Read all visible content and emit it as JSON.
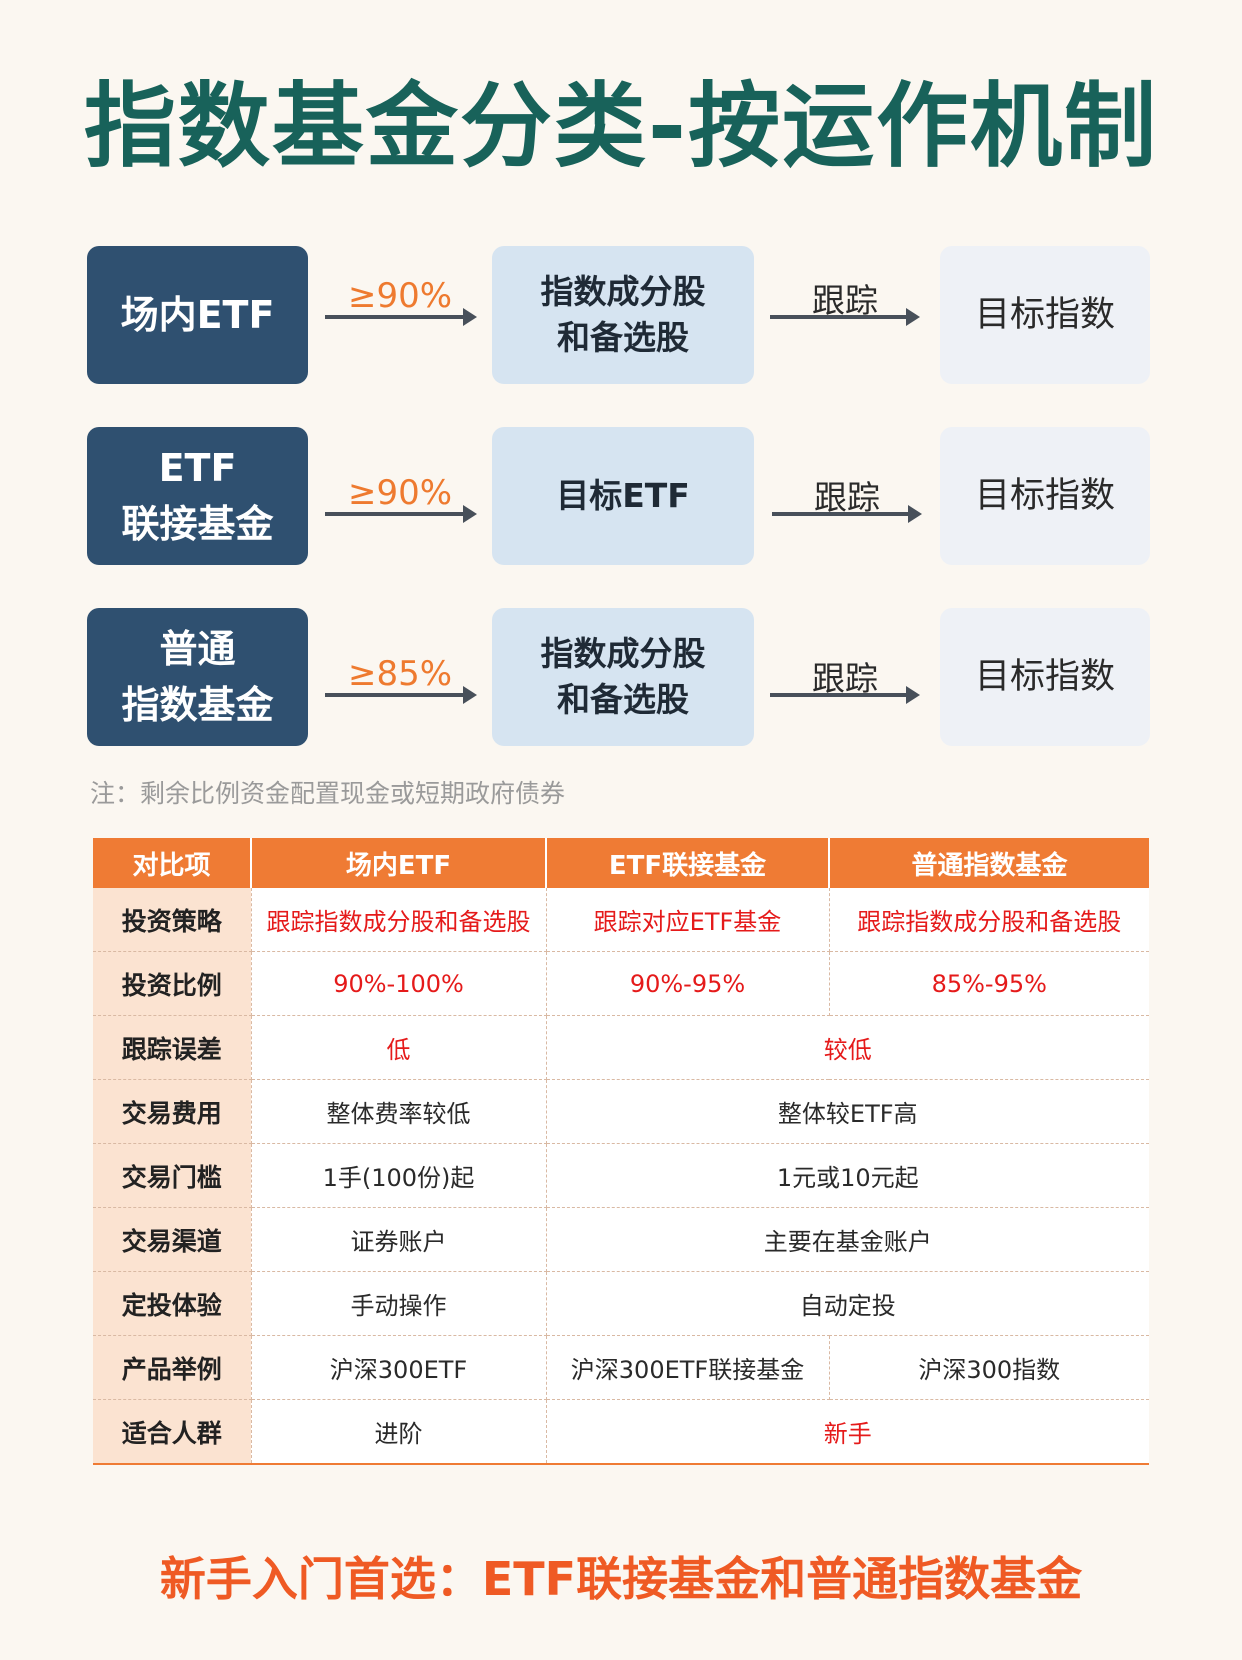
{
  "title": "指数基金分类-按运作机制",
  "flow": [
    {
      "type": "场内ETF",
      "ratio": "≥90%",
      "holding": "指数成分股\n和备选股",
      "track": "跟踪",
      "target": "目标指数"
    },
    {
      "type": "ETF\n联接基金",
      "ratio": "≥90%",
      "holding": "目标ETF",
      "track": "跟踪",
      "target": "目标指数"
    },
    {
      "type": "普通\n指数基金",
      "ratio": "≥85%",
      "holding": "指数成分股\n和备选股",
      "track": "跟踪",
      "target": "目标指数"
    }
  ],
  "note": "注：剩余比例资金配置现金或短期政府债券",
  "table": {
    "headers": [
      "对比项",
      "场内ETF",
      "ETF联接基金",
      "普通指数基金"
    ],
    "rows": [
      {
        "label": "投资策略",
        "cells": [
          "跟踪指数成分股和备选股",
          "跟踪对应ETF基金",
          "跟踪指数成分股和备选股"
        ]
      },
      {
        "label": "投资比例",
        "cells": [
          "90%-100%",
          "90%-95%",
          "85%-95%"
        ]
      },
      {
        "label": "跟踪误差",
        "cells": [
          "低",
          "较低"
        ]
      },
      {
        "label": "交易费用",
        "cells": [
          "整体费率较低",
          "整体较ETF高"
        ]
      },
      {
        "label": "交易门槛",
        "cells": [
          "1手(100份)起",
          "1元或10元起"
        ]
      },
      {
        "label": "交易渠道",
        "cells": [
          "证券账户",
          "主要在基金账户"
        ]
      },
      {
        "label": "定投体验",
        "cells": [
          "手动操作",
          "自动定投"
        ]
      },
      {
        "label": "产品举例",
        "cells": [
          "沪深300ETF",
          "沪深300ETF联接基金",
          "沪深300指数"
        ]
      },
      {
        "label": "适合人群",
        "cells": [
          "进阶",
          "新手"
        ]
      }
    ]
  },
  "footer": "新手入门首选：ETF联接基金和普通指数基金",
  "colors": {
    "title": "#18625a",
    "accent": "#ef7b34",
    "highlight": "#e51a1a",
    "navy": "#2f5070"
  }
}
